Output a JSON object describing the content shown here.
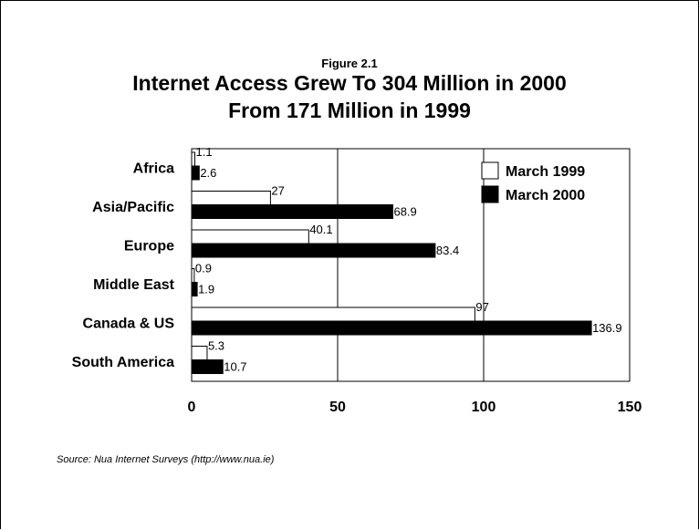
{
  "figure_label": "Figure 2.1",
  "title_line1": "Internet Access Grew To 304 Million in 2000",
  "title_line2": "From 171 Million in 1999",
  "source": "Source: Nua Internet Surveys (http://www.nua.ie)",
  "chart_data": {
    "type": "bar",
    "orientation": "horizontal",
    "categories": [
      "Africa",
      "Asia/Pacific",
      "Europe",
      "Middle East",
      "Canada & US",
      "South America"
    ],
    "series": [
      {
        "name": "March 1999",
        "values": [
          1.1,
          27,
          40.1,
          0.9,
          97,
          5.3
        ],
        "color": "#ffffff"
      },
      {
        "name": "March 2000",
        "values": [
          2.6,
          68.9,
          83.4,
          1.9,
          136.9,
          10.7
        ],
        "color": "#000000"
      }
    ],
    "value_labels": [
      [
        "1.1",
        "27",
        "40.1",
        "0.9",
        "97",
        "5.3"
      ],
      [
        "2.6",
        "68.9",
        "83.4",
        "1.9",
        "136.9",
        "10.7"
      ]
    ],
    "xlim": [
      0,
      150
    ],
    "xticks": [
      0,
      50,
      100,
      150
    ],
    "xtick_labels": [
      "0",
      "50",
      "100",
      "150"
    ],
    "grid": "vertical",
    "legend": "top-right"
  }
}
